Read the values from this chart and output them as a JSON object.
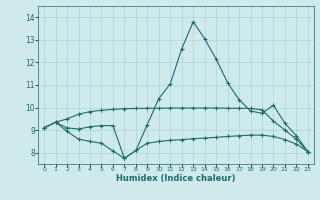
{
  "xlabel": "Humidex (Indice chaleur)",
  "bg_color": "#ceeaea",
  "grid_color": "#aed4d4",
  "line_color": "#1e6b6b",
  "xlim": [
    -0.5,
    23.5
  ],
  "ylim": [
    7.5,
    14.5
  ],
  "yticks": [
    8,
    9,
    10,
    11,
    12,
    13,
    14
  ],
  "xticks": [
    0,
    1,
    2,
    3,
    4,
    5,
    6,
    7,
    8,
    9,
    10,
    11,
    12,
    13,
    14,
    15,
    16,
    17,
    18,
    19,
    20,
    21,
    22,
    23
  ],
  "line1_x": [
    0,
    1,
    2,
    3,
    4,
    5,
    6,
    7,
    8,
    9,
    10,
    11,
    12,
    13,
    14,
    15,
    16,
    17,
    18,
    19,
    20,
    21,
    22,
    23
  ],
  "line1_y": [
    9.1,
    9.35,
    9.1,
    9.05,
    9.15,
    9.2,
    9.2,
    7.75,
    8.1,
    9.25,
    10.4,
    11.05,
    12.6,
    13.8,
    13.05,
    12.15,
    11.1,
    10.35,
    9.85,
    9.75,
    10.1,
    9.3,
    8.75,
    8.05
  ],
  "line2_x": [
    0,
    1,
    2,
    3,
    4,
    5,
    6,
    7,
    8,
    9,
    10,
    11,
    12,
    13,
    14,
    15,
    16,
    17,
    18,
    19,
    20,
    21,
    22,
    23
  ],
  "line2_y": [
    9.1,
    9.35,
    9.5,
    9.7,
    9.82,
    9.88,
    9.92,
    9.95,
    9.96,
    9.97,
    9.97,
    9.98,
    9.98,
    9.98,
    9.98,
    9.98,
    9.97,
    9.97,
    9.96,
    9.9,
    9.4,
    9.0,
    8.6,
    8.05
  ],
  "line3_x": [
    0,
    1,
    2,
    3,
    4,
    5,
    6,
    7,
    8,
    9,
    10,
    11,
    12,
    13,
    14,
    15,
    16,
    17,
    18,
    19,
    20,
    21,
    22,
    23
  ],
  "line3_y": [
    9.1,
    9.35,
    8.95,
    8.6,
    8.5,
    8.42,
    8.08,
    7.75,
    8.1,
    8.42,
    8.5,
    8.55,
    8.58,
    8.62,
    8.65,
    8.68,
    8.72,
    8.75,
    8.78,
    8.78,
    8.72,
    8.58,
    8.38,
    8.05
  ]
}
